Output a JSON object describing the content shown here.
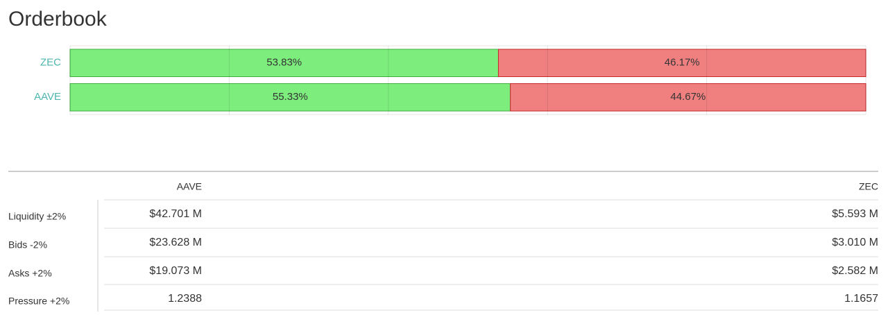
{
  "header": {
    "title": "Orderbook"
  },
  "chart_data": {
    "type": "bar",
    "orientation": "horizontal",
    "stacked": true,
    "categories": [
      "ZEC",
      "AAVE"
    ],
    "series": [
      {
        "color": "#7ded7d",
        "values": [
          53.83,
          55.33
        ],
        "value_labels": [
          "53.83%",
          "55.33%"
        ]
      },
      {
        "color": "#f08080",
        "values": [
          46.17,
          44.67
        ],
        "value_labels": [
          "46.17%",
          "44.67%"
        ]
      }
    ],
    "xlim": [
      0,
      100
    ],
    "xticks": [
      0,
      20,
      40,
      60,
      80,
      100
    ],
    "xtick_labels": false,
    "grid": true
  },
  "table": {
    "columns": [
      "AAVE",
      "ZEC"
    ],
    "rows": [
      {
        "label": "Liquidity ±2%",
        "values": [
          "$42.701 M",
          "$5.593 M"
        ]
      },
      {
        "label": "Bids -2%",
        "values": [
          "$23.628 M",
          "$3.010 M"
        ]
      },
      {
        "label": "Asks +2%",
        "values": [
          "$19.073 M",
          "$2.582 M"
        ]
      },
      {
        "label": "Pressure +2%",
        "values": [
          "1.2388",
          "1.1657"
        ]
      }
    ]
  }
}
